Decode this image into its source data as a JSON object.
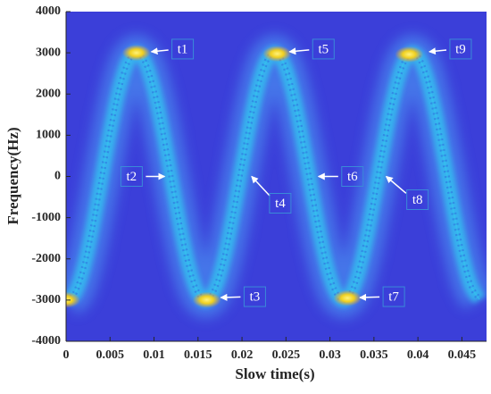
{
  "chart_data": {
    "type": "spectrogram",
    "xlabel": "Slow time(s)",
    "ylabel": "Frequency(Hz)",
    "xlim": [
      0,
      0.0478
    ],
    "ylim": [
      -4000,
      4000
    ],
    "xticks": [
      0,
      0.005,
      0.01,
      0.015,
      0.02,
      0.025,
      0.03,
      0.035,
      0.04,
      0.045
    ],
    "yticks": [
      -4000,
      -3000,
      -2000,
      -1000,
      0,
      1000,
      2000,
      3000,
      4000
    ],
    "background": "#3b3fd9",
    "color": "#33c7f0",
    "peak_color": "#f5e020",
    "x": [
      0,
      0.001,
      0.002,
      0.003,
      0.004,
      0.005,
      0.006,
      0.007,
      0.008,
      0.009,
      0.01,
      0.011,
      0.012,
      0.013,
      0.014,
      0.015,
      0.016,
      0.017,
      0.018,
      0.019,
      0.02,
      0.021,
      0.022,
      0.023,
      0.024,
      0.025,
      0.026,
      0.027,
      0.028,
      0.029,
      0.03,
      0.031,
      0.032,
      0.033,
      0.034,
      0.035,
      0.036,
      0.037,
      0.038,
      0.039,
      0.04,
      0.041,
      0.042,
      0.043,
      0.044,
      0.045,
      0.046,
      0.047
    ],
    "series": [
      {
        "values": [
          -2995,
          -2828,
          -2215,
          -1251,
          -90,
          1085,
          2089,
          2763,
          3000,
          2763,
          2089,
          1085,
          -90,
          -1251,
          -2215,
          -2828,
          -2995,
          -2688,
          -1956,
          -916,
          270,
          1412,
          2333,
          2883,
          2978,
          2603,
          1817,
          743,
          -449,
          -1569,
          -2441,
          -2928,
          -2951,
          -2509,
          -1670,
          -567,
          626,
          1720,
          2542,
          2962,
          2914,
          2406,
          1517,
          389,
          -801,
          -1864,
          -2633,
          -2985
        ]
      }
    ],
    "annotations": [
      {
        "text": "t1",
        "x": 0.0097,
        "y": 3026
      },
      {
        "text": "t2",
        "x": 0.0112,
        "y": 0
      },
      {
        "text": "t3",
        "x": 0.0176,
        "y": -2939
      },
      {
        "text": "t4",
        "x": 0.0211,
        "y": 0
      },
      {
        "text": "t5",
        "x": 0.0254,
        "y": 3026
      },
      {
        "text": "t6",
        "x": 0.0287,
        "y": 0
      },
      {
        "text": "t7",
        "x": 0.0334,
        "y": -2939
      },
      {
        "text": "t8",
        "x": 0.0364,
        "y": 0
      },
      {
        "text": "t9",
        "x": 0.0413,
        "y": 3026
      }
    ]
  }
}
